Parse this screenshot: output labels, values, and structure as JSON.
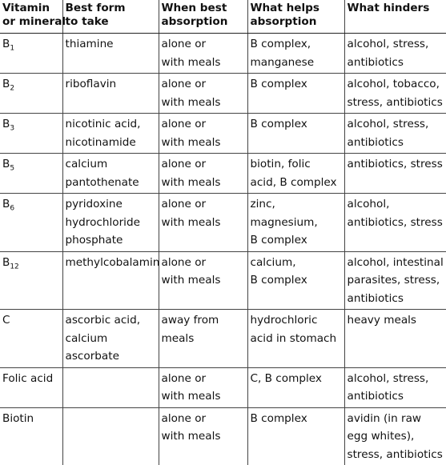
{
  "table": {
    "headers": [
      [
        "Vitamin",
        "or mineral"
      ],
      [
        "Best form",
        "to take"
      ],
      [
        "When best",
        "absorption"
      ],
      [
        "What helps",
        "absorption"
      ],
      [
        "What hinders"
      ]
    ],
    "rows": [
      {
        "vitamin": {
          "base": "B",
          "sub": "1"
        },
        "form": [
          "thiamine"
        ],
        "when": [
          "alone or",
          "with meals"
        ],
        "helps": [
          "B complex,",
          "manganese"
        ],
        "hinders": [
          "alcohol, stress,",
          "antibiotics"
        ]
      },
      {
        "vitamin": {
          "base": "B",
          "sub": "2"
        },
        "form": [
          "riboflavin"
        ],
        "when": [
          "alone or",
          "with meals"
        ],
        "helps": [
          "B complex"
        ],
        "hinders": [
          "alcohol, tobacco,",
          "stress, antibiotics"
        ]
      },
      {
        "vitamin": {
          "base": "B",
          "sub": "3"
        },
        "form": [
          "nicotinic acid,",
          "nicotinamide"
        ],
        "when": [
          "alone or",
          "with meals"
        ],
        "helps": [
          "B complex"
        ],
        "hinders": [
          "alcohol, stress,",
          "antibiotics"
        ]
      },
      {
        "vitamin": {
          "base": "B",
          "sub": "5"
        },
        "form": [
          "calcium",
          "pantothenate"
        ],
        "when": [
          "alone or",
          "with meals"
        ],
        "helps": [
          "biotin, folic",
          "acid, B complex"
        ],
        "hinders": [
          "antibiotics, stress"
        ]
      },
      {
        "vitamin": {
          "base": "B",
          "sub": "6"
        },
        "form": [
          "pyridoxine",
          "hydrochloride",
          "phosphate"
        ],
        "when": [
          "alone or",
          "with meals"
        ],
        "helps": [
          "zinc,",
          "magnesium,",
          "B complex"
        ],
        "hinders": [
          "alcohol,",
          "antibiotics, stress"
        ]
      },
      {
        "vitamin": {
          "base": "B",
          "sub": "12"
        },
        "form": [
          "methylcobalamin"
        ],
        "when": [
          "alone or",
          "with meals"
        ],
        "helps": [
          "calcium,",
          "B complex"
        ],
        "hinders": [
          "alcohol, intestinal",
          "parasites, stress,",
          "antibiotics"
        ]
      },
      {
        "vitamin": {
          "base": "C",
          "sub": ""
        },
        "form": [
          "ascorbic acid,",
          "calcium",
          "ascorbate"
        ],
        "when": [
          "away from",
          "meals"
        ],
        "helps": [
          "hydrochloric",
          "acid in stomach"
        ],
        "hinders": [
          "heavy meals"
        ]
      },
      {
        "vitamin": {
          "base": "Folic acid",
          "sub": ""
        },
        "form": [],
        "when": [
          "alone or",
          "with meals"
        ],
        "helps": [
          "C, B complex"
        ],
        "hinders": [
          "alcohol, stress,",
          "antibiotics"
        ]
      },
      {
        "vitamin": {
          "base": "Biotin",
          "sub": ""
        },
        "form": [],
        "when": [
          "alone or",
          "with meals"
        ],
        "helps": [
          "B complex"
        ],
        "hinders": [
          "avidin (in raw",
          "egg whites),",
          "stress, antibiotics"
        ]
      }
    ]
  }
}
